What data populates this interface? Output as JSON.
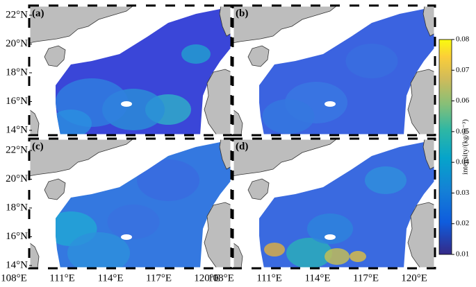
{
  "panels": [
    {
      "label": "(a)"
    },
    {
      "label": "(b)"
    },
    {
      "label": "(c)"
    },
    {
      "label": "(d)"
    }
  ],
  "lat_ticks": [
    {
      "value": 22,
      "label": "22°N"
    },
    {
      "value": 20,
      "label": "20°N"
    },
    {
      "value": 18,
      "label": "18°N"
    },
    {
      "value": 16,
      "label": "16°N"
    },
    {
      "value": 14,
      "label": "14°N"
    }
  ],
  "lon_ticks": [
    {
      "value": 108,
      "label": "108°E"
    },
    {
      "value": 111,
      "label": "111°E"
    },
    {
      "value": 114,
      "label": "114°E"
    },
    {
      "value": 117,
      "label": "117°E"
    },
    {
      "value": 120,
      "label": "120°E"
    }
  ],
  "colorbar": {
    "label": "intensity/(kg/m⁻³)",
    "range": [
      0.01,
      0.08
    ],
    "ticks": [
      0.01,
      0.02,
      0.03,
      0.04,
      0.05,
      0.06,
      0.07,
      0.08
    ]
  }
}
